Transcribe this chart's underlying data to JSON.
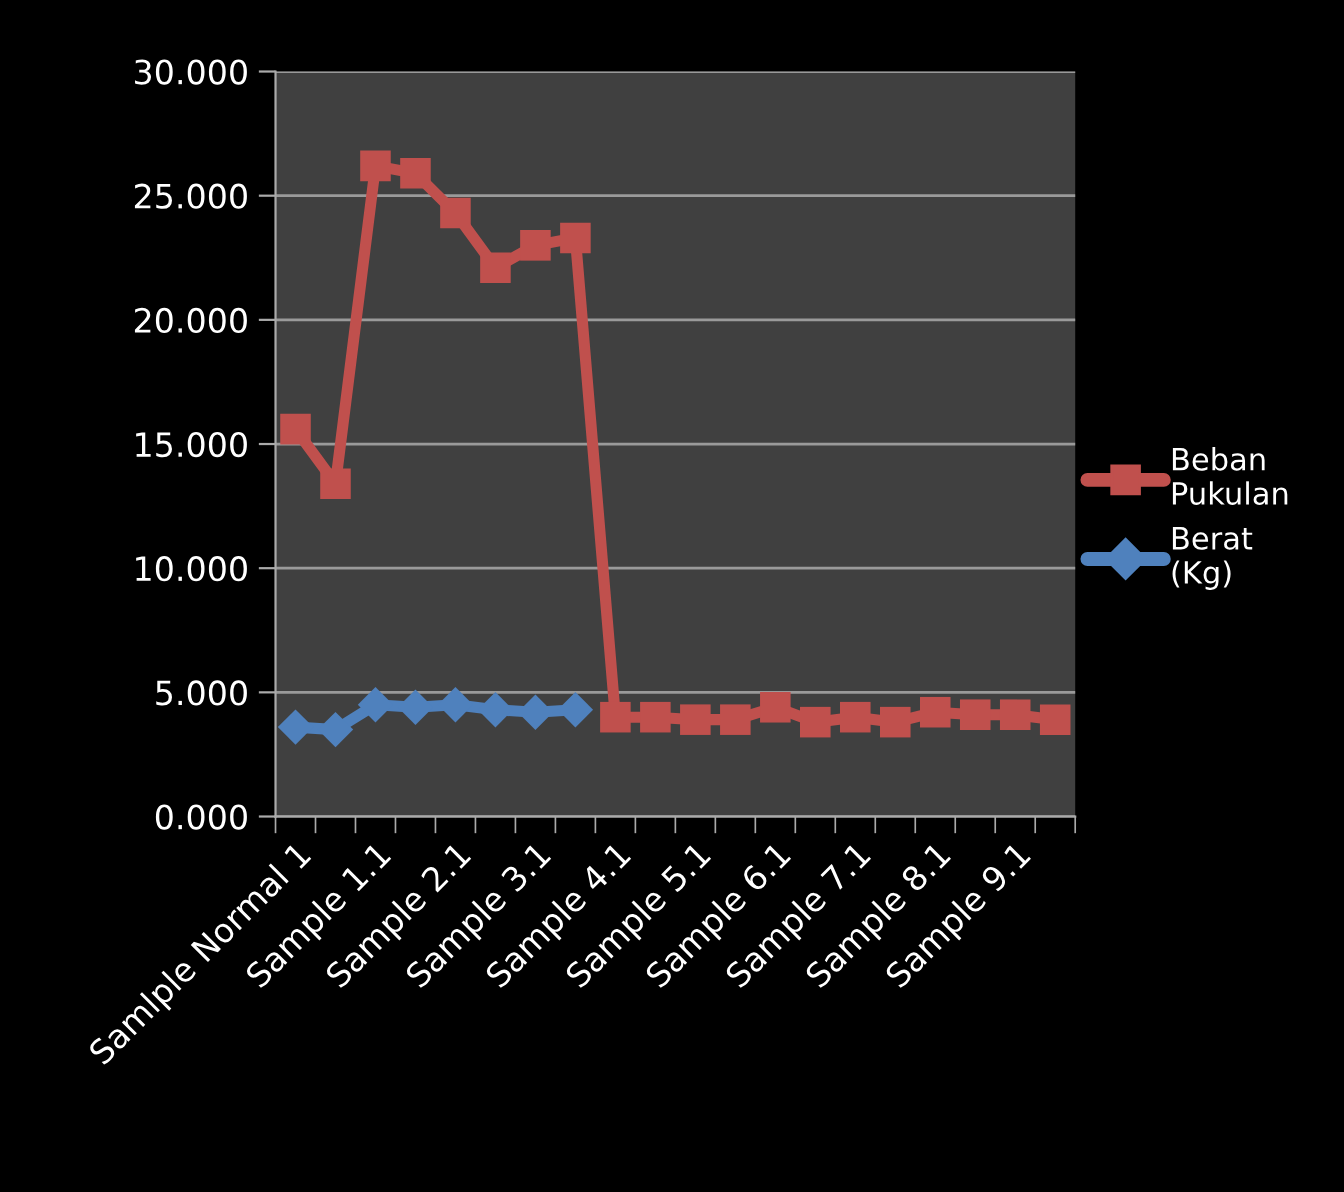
{
  "chart_data": {
    "type": "line",
    "categories": [
      "Samlple Normal 1",
      null,
      "Sample 1.1",
      null,
      "Sample 2.1",
      null,
      "Sample 3.1",
      null,
      "Sample 4.1",
      null,
      "Sample 5.1",
      null,
      "Sample 6.1",
      null,
      "Sample 7.1",
      null,
      "Sample 8.1",
      null,
      "Sample 9.1",
      null
    ],
    "series": [
      {
        "name": "Beban Pukulan",
        "color": "#c0504d",
        "marker": "square",
        "values": [
          15.6,
          13.4,
          26.2,
          25.9,
          24.3,
          22.1,
          23.0,
          23.3,
          4.0,
          4.0,
          3.9,
          3.9,
          4.4,
          3.8,
          4.0,
          3.8,
          4.2,
          4.1,
          4.1,
          3.9
        ]
      },
      {
        "name": "Berat (Kg)",
        "color": "#4f81bd",
        "marker": "diamond",
        "values": [
          3.6,
          3.5,
          4.5,
          4.4,
          4.5,
          4.3,
          4.2,
          4.3,
          null,
          null,
          null,
          null,
          null,
          null,
          null,
          null,
          null,
          null,
          null,
          null
        ]
      }
    ],
    "ylim": [
      0,
      30
    ],
    "yticks": [
      {
        "value": 0,
        "label": "0.000"
      },
      {
        "value": 5,
        "label": "5.000"
      },
      {
        "value": 10,
        "label": "10.000"
      },
      {
        "value": 15,
        "label": "15.000"
      },
      {
        "value": 20,
        "label": "20.000"
      },
      {
        "value": 25,
        "label": "25.000"
      },
      {
        "value": 30,
        "label": "30.000"
      }
    ],
    "grid": "y",
    "legend": "right",
    "line_style": "solid"
  }
}
